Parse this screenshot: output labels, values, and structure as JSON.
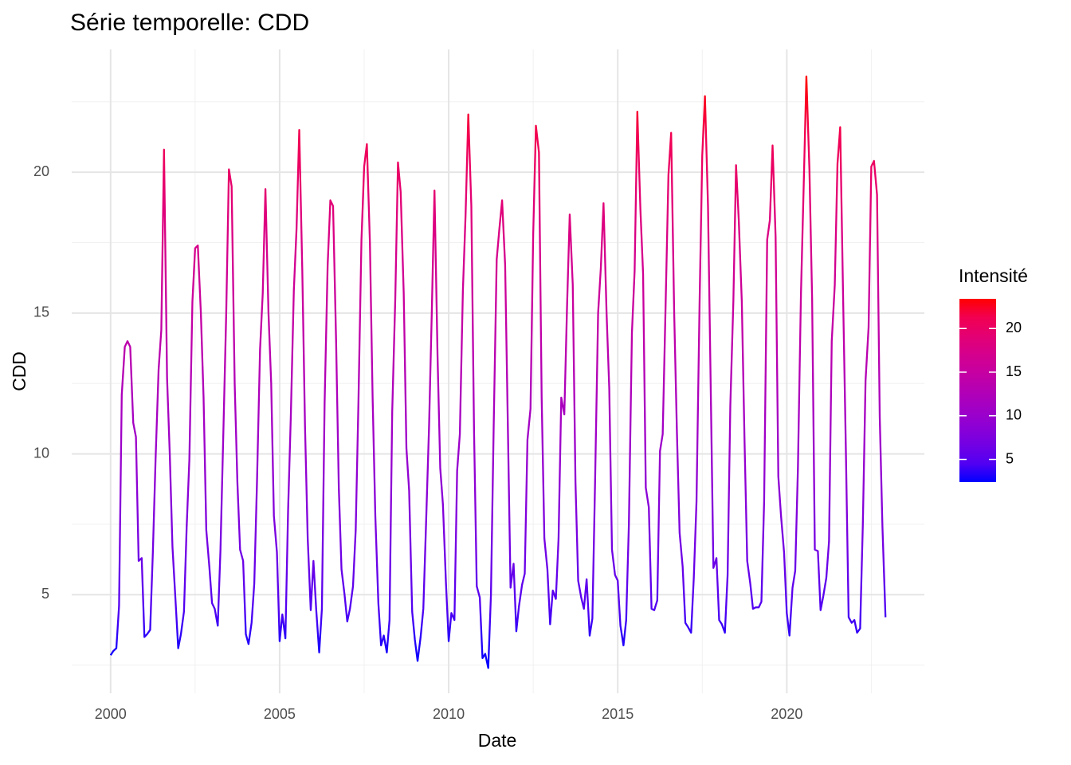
{
  "chart_data": {
    "type": "line",
    "title": "Série temporelle:  CDD",
    "x_label": "Date",
    "y_label": "CDD",
    "legend_title": "Intensité",
    "colors": {
      "low": "#0000ff",
      "high": "#ff0000"
    },
    "color_ticks": [
      5,
      10,
      15,
      20
    ],
    "xlim": [
      1998.85,
      2024.07
    ],
    "xticks": [
      2000,
      2005,
      2010,
      2015,
      2020
    ],
    "xminor": [
      2002.5,
      2007.5,
      2012.5,
      2017.5,
      2022.5
    ],
    "ylim": [
      1.5,
      24.36
    ],
    "yticks": [
      5,
      10,
      15,
      20
    ],
    "yminor": [
      2.5,
      7.5,
      12.5,
      17.5,
      22.5
    ],
    "grid": true,
    "x": [
      2000,
      2000.08,
      2000.17,
      2000.25,
      2000.33,
      2000.42,
      2000.5,
      2000.58,
      2000.67,
      2000.75,
      2000.83,
      2000.92,
      2001,
      2001.08,
      2001.17,
      2001.25,
      2001.33,
      2001.42,
      2001.5,
      2001.58,
      2001.67,
      2001.75,
      2001.83,
      2001.92,
      2002,
      2002.08,
      2002.17,
      2002.25,
      2002.33,
      2002.42,
      2002.5,
      2002.58,
      2002.67,
      2002.75,
      2002.83,
      2002.92,
      2003,
      2003.08,
      2003.17,
      2003.25,
      2003.33,
      2003.42,
      2003.5,
      2003.58,
      2003.67,
      2003.75,
      2003.83,
      2003.92,
      2004,
      2004.08,
      2004.17,
      2004.25,
      2004.33,
      2004.42,
      2004.5,
      2004.58,
      2004.67,
      2004.75,
      2004.83,
      2004.92,
      2005,
      2005.08,
      2005.17,
      2005.25,
      2005.33,
      2005.42,
      2005.5,
      2005.58,
      2005.67,
      2005.75,
      2005.83,
      2005.92,
      2006,
      2006.08,
      2006.17,
      2006.25,
      2006.33,
      2006.42,
      2006.5,
      2006.58,
      2006.67,
      2006.75,
      2006.83,
      2006.92,
      2007,
      2007.08,
      2007.17,
      2007.25,
      2007.33,
      2007.42,
      2007.5,
      2007.58,
      2007.67,
      2007.75,
      2007.83,
      2007.92,
      2008,
      2008.08,
      2008.17,
      2008.25,
      2008.33,
      2008.42,
      2008.5,
      2008.58,
      2008.67,
      2008.75,
      2008.83,
      2008.92,
      2009,
      2009.08,
      2009.17,
      2009.25,
      2009.33,
      2009.42,
      2009.5,
      2009.58,
      2009.67,
      2009.75,
      2009.83,
      2009.92,
      2010,
      2010.08,
      2010.17,
      2010.25,
      2010.33,
      2010.42,
      2010.5,
      2010.58,
      2010.67,
      2010.75,
      2010.83,
      2010.92,
      2011,
      2011.08,
      2011.17,
      2011.25,
      2011.33,
      2011.42,
      2011.5,
      2011.58,
      2011.67,
      2011.75,
      2011.83,
      2011.92,
      2012,
      2012.08,
      2012.17,
      2012.25,
      2012.33,
      2012.42,
      2012.5,
      2012.58,
      2012.67,
      2012.75,
      2012.83,
      2012.92,
      2013,
      2013.08,
      2013.17,
      2013.25,
      2013.33,
      2013.42,
      2013.5,
      2013.58,
      2013.67,
      2013.75,
      2013.83,
      2013.92,
      2014,
      2014.08,
      2014.17,
      2014.25,
      2014.33,
      2014.42,
      2014.5,
      2014.58,
      2014.67,
      2014.75,
      2014.83,
      2014.92,
      2015,
      2015.08,
      2015.17,
      2015.25,
      2015.33,
      2015.42,
      2015.5,
      2015.58,
      2015.67,
      2015.75,
      2015.83,
      2015.92,
      2016,
      2016.08,
      2016.17,
      2016.25,
      2016.33,
      2016.42,
      2016.5,
      2016.58,
      2016.67,
      2016.75,
      2016.83,
      2016.92,
      2017,
      2017.08,
      2017.17,
      2017.25,
      2017.33,
      2017.42,
      2017.5,
      2017.58,
      2017.67,
      2017.75,
      2017.83,
      2017.92,
      2018,
      2018.08,
      2018.17,
      2018.25,
      2018.33,
      2018.42,
      2018.5,
      2018.58,
      2018.67,
      2018.75,
      2018.83,
      2018.92,
      2019,
      2019.08,
      2019.17,
      2019.25,
      2019.33,
      2019.42,
      2019.5,
      2019.58,
      2019.67,
      2019.75,
      2019.83,
      2019.92,
      2020,
      2020.08,
      2020.17,
      2020.25,
      2020.33,
      2020.42,
      2020.5,
      2020.58,
      2020.67,
      2020.75,
      2020.83,
      2020.92,
      2021,
      2021.08,
      2021.17,
      2021.25,
      2021.33,
      2021.42,
      2021.5,
      2021.58,
      2021.67,
      2021.75,
      2021.83,
      2021.92,
      2022,
      2022.08,
      2022.17,
      2022.25,
      2022.33,
      2022.42,
      2022.5,
      2022.58,
      2022.67,
      2022.75,
      2022.83,
      2022.92
    ],
    "values": [
      2.85,
      3.0,
      3.1,
      4.6,
      12.1,
      13.8,
      14.0,
      13.8,
      11.1,
      10.6,
      6.2,
      6.3,
      3.5,
      3.6,
      3.75,
      6.5,
      9.8,
      13.0,
      14.4,
      20.8,
      12.7,
      10.0,
      6.7,
      4.8,
      3.1,
      3.6,
      4.4,
      7.4,
      9.8,
      15.4,
      17.3,
      17.4,
      15.0,
      12.0,
      7.3,
      6.0,
      4.7,
      4.5,
      3.9,
      6.6,
      10.5,
      15.0,
      20.1,
      19.5,
      12.5,
      9.0,
      6.6,
      6.2,
      3.6,
      3.25,
      4.0,
      5.4,
      9.0,
      13.7,
      15.7,
      19.4,
      15.0,
      12.5,
      7.8,
      6.5,
      3.35,
      4.3,
      3.45,
      8.0,
      11.3,
      15.8,
      18.0,
      21.5,
      16.5,
      11.0,
      7.0,
      4.45,
      6.2,
      4.5,
      2.95,
      4.5,
      11.8,
      16.7,
      19.0,
      18.8,
      14.0,
      8.8,
      5.9,
      5.0,
      4.05,
      4.5,
      5.3,
      7.3,
      11.8,
      17.6,
      20.2,
      21.0,
      17.5,
      12.0,
      7.8,
      4.7,
      3.2,
      3.55,
      2.95,
      4.1,
      11.5,
      15.5,
      20.35,
      19.3,
      15.7,
      10.2,
      8.7,
      4.4,
      3.4,
      2.65,
      3.5,
      4.5,
      7.5,
      11.0,
      15.0,
      19.35,
      13.5,
      9.5,
      8.2,
      5.4,
      3.35,
      4.35,
      4.1,
      9.4,
      10.7,
      15.8,
      18.5,
      22.05,
      18.8,
      10.8,
      5.3,
      4.9,
      2.75,
      2.9,
      2.4,
      5.0,
      10.9,
      16.9,
      18.0,
      19.0,
      16.7,
      11.0,
      5.25,
      6.1,
      3.7,
      4.6,
      5.35,
      5.75,
      10.5,
      11.6,
      17.8,
      21.65,
      20.7,
      12.0,
      7.0,
      5.9,
      3.95,
      5.15,
      4.85,
      7.0,
      12.0,
      11.4,
      15.2,
      18.5,
      16.0,
      9.0,
      5.5,
      4.9,
      4.5,
      5.55,
      3.55,
      4.15,
      9.0,
      15.0,
      16.6,
      18.9,
      15.0,
      12.3,
      6.6,
      5.7,
      5.5,
      3.9,
      3.2,
      4.1,
      7.5,
      14.3,
      16.5,
      22.15,
      18.7,
      16.4,
      8.8,
      8.1,
      4.5,
      4.45,
      4.8,
      10.1,
      10.7,
      15.5,
      19.9,
      21.4,
      15.0,
      10.8,
      7.2,
      6.0,
      4.0,
      3.85,
      3.65,
      5.6,
      8.3,
      15.3,
      20.6,
      22.7,
      18.8,
      12.4,
      5.95,
      6.3,
      4.1,
      3.95,
      3.65,
      5.7,
      11.7,
      15.4,
      20.25,
      18.3,
      15.4,
      10.5,
      6.2,
      5.4,
      4.5,
      4.55,
      4.55,
      4.75,
      8.3,
      17.6,
      18.3,
      20.95,
      17.7,
      9.2,
      7.8,
      6.5,
      4.35,
      3.55,
      5.25,
      5.85,
      9.5,
      15.7,
      19.5,
      23.4,
      20.1,
      15.5,
      6.6,
      6.55,
      4.45,
      4.95,
      5.6,
      6.9,
      14.0,
      16.0,
      20.3,
      21.6,
      15.3,
      10.0,
      4.2,
      4.0,
      4.1,
      3.65,
      3.8,
      7.5,
      12.6,
      14.5,
      20.2,
      20.4,
      19.2,
      11.3,
      7.4,
      4.2
    ]
  }
}
